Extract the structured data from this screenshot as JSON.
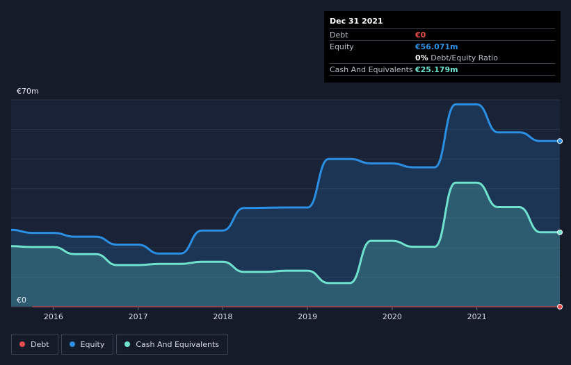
{
  "tooltip": {
    "date": "Dec 31 2021",
    "rows": [
      {
        "label": "Debt",
        "value": "€0"
      },
      {
        "label": "Equity",
        "value": "€56.071m"
      },
      {
        "ratio_value": "0%",
        "ratio_label": "Debt/Equity Ratio"
      },
      {
        "label": "Cash And Equivalents",
        "value": "€25.179m"
      }
    ]
  },
  "colors": {
    "debt": "#e84b4b",
    "equity": "#2b8fe3",
    "cash": "#6fe3cf",
    "background": "#151b28"
  },
  "legend": [
    {
      "name": "Debt",
      "color": "#e84b4b"
    },
    {
      "name": "Equity",
      "color": "#2b8fe3"
    },
    {
      "name": "Cash And Equivalents",
      "color": "#6fe3cf"
    }
  ],
  "chart_data": {
    "type": "area",
    "title": "",
    "xlabel": "",
    "ylabel": "",
    "y_top_label": "€70m",
    "y_bottom_label": "€0",
    "ylim": [
      0,
      70
    ],
    "xlim": [
      2015.5,
      2021.98
    ],
    "x_ticks": [
      2016,
      2017,
      2018,
      2019,
      2020,
      2021
    ],
    "x_tick_labels": [
      "2016",
      "2017",
      "2018",
      "2019",
      "2020",
      "2021"
    ],
    "series": [
      {
        "name": "Equity",
        "points": [
          [
            2015.5,
            26.0
          ],
          [
            2015.75,
            25.0
          ],
          [
            2016.0,
            25.0
          ],
          [
            2016.25,
            23.7
          ],
          [
            2016.5,
            23.7
          ],
          [
            2016.75,
            21.0
          ],
          [
            2017.0,
            21.0
          ],
          [
            2017.25,
            18.0
          ],
          [
            2017.5,
            18.0
          ],
          [
            2017.75,
            25.8
          ],
          [
            2018.0,
            25.8
          ],
          [
            2018.25,
            33.4
          ],
          [
            2018.75,
            33.6
          ],
          [
            2019.0,
            33.6
          ],
          [
            2019.25,
            50.0
          ],
          [
            2019.5,
            50.0
          ],
          [
            2019.75,
            48.5
          ],
          [
            2020.0,
            48.5
          ],
          [
            2020.25,
            47.2
          ],
          [
            2020.5,
            47.2
          ],
          [
            2020.75,
            68.5
          ],
          [
            2021.0,
            68.5
          ],
          [
            2021.25,
            59.0
          ],
          [
            2021.5,
            59.0
          ],
          [
            2021.75,
            56.071
          ],
          [
            2021.98,
            56.071
          ]
        ]
      },
      {
        "name": "Cash And Equivalents",
        "points": [
          [
            2015.5,
            20.5
          ],
          [
            2015.75,
            20.2
          ],
          [
            2016.0,
            20.2
          ],
          [
            2016.25,
            17.8
          ],
          [
            2016.5,
            17.8
          ],
          [
            2016.75,
            14.1
          ],
          [
            2017.0,
            14.1
          ],
          [
            2017.25,
            14.5
          ],
          [
            2017.5,
            14.5
          ],
          [
            2017.75,
            15.2
          ],
          [
            2018.0,
            15.2
          ],
          [
            2018.25,
            11.8
          ],
          [
            2018.5,
            11.8
          ],
          [
            2018.75,
            12.2
          ],
          [
            2019.0,
            12.2
          ],
          [
            2019.25,
            8.0
          ],
          [
            2019.5,
            8.0
          ],
          [
            2019.75,
            22.3
          ],
          [
            2020.0,
            22.3
          ],
          [
            2020.25,
            20.3
          ],
          [
            2020.5,
            20.3
          ],
          [
            2020.75,
            42.0
          ],
          [
            2021.0,
            42.0
          ],
          [
            2021.25,
            33.7
          ],
          [
            2021.5,
            33.7
          ],
          [
            2021.75,
            25.179
          ],
          [
            2021.98,
            25.179
          ]
        ]
      },
      {
        "name": "Debt",
        "points": [
          [
            2015.75,
            0
          ],
          [
            2021.98,
            0
          ]
        ]
      }
    ]
  }
}
